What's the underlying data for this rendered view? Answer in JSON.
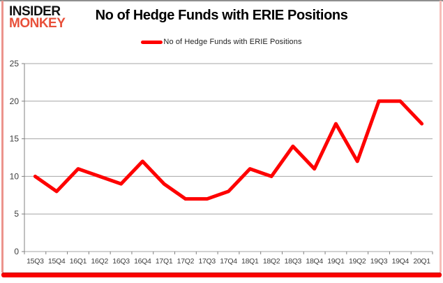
{
  "header": {
    "logo_line1": "INSIDER",
    "logo_line2": "MONKEY",
    "title": "No of Hedge Funds with ERIE Positions"
  },
  "legend": {
    "label": "No of Hedge Funds with ERIE Positions"
  },
  "chart_data": {
    "type": "line",
    "title": "No of Hedge Funds with ERIE Positions",
    "categories": [
      "15Q3",
      "15Q4",
      "16Q1",
      "16Q2",
      "16Q3",
      "16Q4",
      "17Q1",
      "17Q2",
      "17Q3",
      "17Q4",
      "18Q1",
      "18Q2",
      "18Q3",
      "18Q4",
      "19Q1",
      "19Q2",
      "19Q3",
      "19Q4",
      "20Q1"
    ],
    "series": [
      {
        "name": "No of Hedge Funds with ERIE Positions",
        "color": "#fe0000",
        "values": [
          10,
          8,
          11,
          10,
          9,
          12,
          9,
          7,
          7,
          8,
          11,
          10,
          14,
          11,
          17,
          12,
          20,
          20,
          17
        ]
      }
    ],
    "ylim": [
      0,
      25
    ],
    "yticks": [
      0,
      5,
      10,
      15,
      20,
      25
    ],
    "xlabel": "",
    "ylabel": "",
    "grid": "horizontal",
    "legend_position": "top-center"
  },
  "colors": {
    "line_red": "#fe0000",
    "brand_red": "#e8503a",
    "gridline_gray": "#a6a6a6",
    "axis_gray": "#808080",
    "tick_label_gray": "#3d3d3d",
    "frame_top_gray": "#8f8f8f",
    "frame_side_pink": "#ec948c",
    "bottom_bar_red": "#fa0100",
    "background": "#ffffff"
  }
}
